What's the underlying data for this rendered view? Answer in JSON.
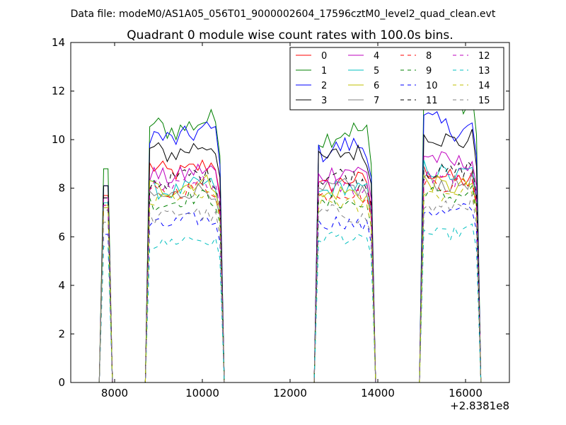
{
  "suptitle": "Data file: modeM0/AS1A05_056T01_9000002604_17596cztM0_level2_quad_clean.evt",
  "chart_data": {
    "type": "line",
    "title": "Quadrant 0 module wise count rates with 100.0s bins.",
    "xlabel": "",
    "ylabel": "",
    "x_offset_label": "+2.8381e8",
    "xlim": [
      7000,
      17000
    ],
    "ylim": [
      0,
      14
    ],
    "xticks": [
      8000,
      10000,
      12000,
      14000,
      16000
    ],
    "xtick_labels": [
      "8000",
      "10000",
      "12000",
      "14000",
      "16000"
    ],
    "yticks": [
      0,
      2,
      4,
      6,
      8,
      10,
      12,
      14
    ],
    "ytick_labels": [
      "0",
      "2",
      "4",
      "6",
      "8",
      "10",
      "12",
      "14"
    ],
    "grid": false,
    "legend_position": "top-right",
    "legend_columns": 4,
    "segments": [
      {
        "start": 7750,
        "end": 7850
      },
      {
        "start": 8800,
        "end": 10400
      },
      {
        "start": 12650,
        "end": 13850
      },
      {
        "start": 15050,
        "end": 16250
      }
    ],
    "series": [
      {
        "name": "0",
        "color": "#ff0000",
        "dash": "solid",
        "levels": [
          7.7,
          8.8,
          8.2,
          8.5
        ]
      },
      {
        "name": "1",
        "color": "#008000",
        "dash": "solid",
        "levels": [
          8.8,
          10.6,
          10.2,
          11.6
        ]
      },
      {
        "name": "2",
        "color": "#0000ff",
        "dash": "solid",
        "levels": [
          8.1,
          10.2,
          9.6,
          10.6
        ]
      },
      {
        "name": "3",
        "color": "#000000",
        "dash": "solid",
        "levels": [
          8.1,
          9.6,
          9.3,
          10.1
        ]
      },
      {
        "name": "4",
        "color": "#bf00bf",
        "dash": "solid",
        "levels": [
          7.6,
          8.6,
          8.6,
          9.2
        ]
      },
      {
        "name": "5",
        "color": "#00bfbf",
        "dash": "solid",
        "levels": [
          7.4,
          8.0,
          7.9,
          8.7
        ]
      },
      {
        "name": "6",
        "color": "#bfbf00",
        "dash": "solid",
        "levels": [
          7.3,
          8.1,
          7.7,
          8.2
        ]
      },
      {
        "name": "7",
        "color": "#808080",
        "dash": "solid",
        "levels": [
          7.2,
          7.8,
          7.9,
          8.3
        ]
      },
      {
        "name": "8",
        "color": "#ff0000",
        "dash": "dashed",
        "levels": [
          7.3,
          7.9,
          7.7,
          8.3
        ]
      },
      {
        "name": "9",
        "color": "#008000",
        "dash": "dashed",
        "levels": [
          7.1,
          7.5,
          7.3,
          7.8
        ]
      },
      {
        "name": "10",
        "color": "#0000ff",
        "dash": "dashed",
        "levels": [
          6.1,
          6.6,
          6.5,
          7.1
        ]
      },
      {
        "name": "11",
        "color": "#000000",
        "dash": "dashed",
        "levels": [
          7.6,
          8.4,
          8.4,
          8.8
        ]
      },
      {
        "name": "12",
        "color": "#bf00bf",
        "dash": "dashed",
        "levels": [
          7.3,
          8.2,
          8.0,
          8.5
        ]
      },
      {
        "name": "13",
        "color": "#00bfbf",
        "dash": "dashed",
        "levels": [
          5.6,
          5.8,
          5.9,
          6.2
        ]
      },
      {
        "name": "14",
        "color": "#bfbf00",
        "dash": "dashed",
        "levels": [
          7.2,
          7.6,
          7.3,
          7.9
        ]
      },
      {
        "name": "15",
        "color": "#808080",
        "dash": "dashed",
        "levels": [
          6.6,
          6.9,
          6.9,
          7.3
        ]
      }
    ]
  }
}
